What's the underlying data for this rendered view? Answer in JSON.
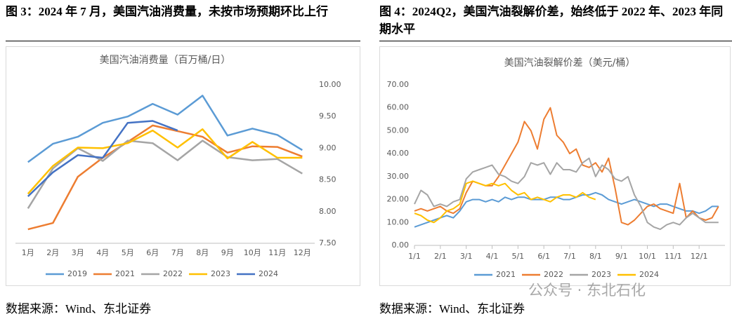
{
  "figures": [
    {
      "caption": "图 3：2024 年 7 月，美国汽油消费量，未按市场预期环比上行",
      "source": "数据来源：Wind、东北证券"
    },
    {
      "caption": "图 4：2024Q2，美国汽油裂解价差，始终低于 2022 年、2023 年同期水平",
      "source": "数据来源：Wind、东北证券"
    }
  ],
  "watermark": "公众号 · 东北石化",
  "chart_data": [
    {
      "type": "line",
      "title": "美国汽油消费量（百万桶/日）",
      "y_axis_side": "right",
      "grid": false,
      "legend": "bottom",
      "categories": [
        "1月",
        "2月",
        "3月",
        "4月",
        "5月",
        "6月",
        "7月",
        "8月",
        "9月",
        "10月",
        "11月",
        "12月"
      ],
      "ylim": [
        7.5,
        10
      ],
      "yticks": [
        {
          "value": 7.5,
          "label": "7.50"
        },
        {
          "value": 8,
          "label": "8.00"
        },
        {
          "value": 8.5,
          "label": "8.50"
        },
        {
          "value": 9,
          "label": "9.00"
        },
        {
          "value": 9.5,
          "label": "9.50"
        },
        {
          "value": 10,
          "label": "10.00"
        }
      ],
      "series": [
        {
          "name": "2019",
          "color": "#5b9bd5",
          "values": [
            8.78,
            9.07,
            9.18,
            9.4,
            9.5,
            9.7,
            9.53,
            9.83,
            9.2,
            9.31,
            9.21,
            8.97
          ]
        },
        {
          "name": "2021",
          "color": "#ed7d31",
          "values": [
            7.72,
            7.82,
            8.55,
            8.85,
            9.1,
            9.36,
            9.27,
            9.18,
            8.93,
            9.03,
            9.02,
            8.87
          ]
        },
        {
          "name": "2022",
          "color": "#a5a5a5",
          "values": [
            8.05,
            8.68,
            9.0,
            8.8,
            9.12,
            9.08,
            8.81,
            9.12,
            8.86,
            8.81,
            8.83,
            8.6
          ]
        },
        {
          "name": "2023",
          "color": "#ffc000",
          "values": [
            8.28,
            8.72,
            9.01,
            9.0,
            9.08,
            9.28,
            9.01,
            9.3,
            8.84,
            9.1,
            8.85,
            8.85
          ]
        },
        {
          "name": "2024",
          "color": "#4472c4",
          "values": [
            8.24,
            8.62,
            8.89,
            8.85,
            9.4,
            9.43,
            9.28,
            null,
            null,
            null,
            null,
            null
          ]
        }
      ]
    },
    {
      "type": "line",
      "title": "美国汽油裂解价差（美元/桶）",
      "y_axis_side": "left",
      "grid": false,
      "legend": "bottom",
      "categories": [
        "1/1",
        null,
        null,
        null,
        "2/1",
        null,
        null,
        null,
        "3/1",
        null,
        null,
        null,
        "4/1",
        null,
        null,
        null,
        "5/1",
        null,
        null,
        null,
        "6/1",
        null,
        null,
        null,
        "7/1",
        null,
        null,
        null,
        "8/1",
        null,
        null,
        null,
        "9/1",
        null,
        null,
        null,
        "10/1",
        null,
        null,
        null,
        "11/1",
        null,
        null,
        null,
        "12/1",
        null,
        null,
        null
      ],
      "ylim": [
        0,
        70
      ],
      "yticks": [
        {
          "value": 0,
          "label": "0.00"
        },
        {
          "value": 10,
          "label": "10.00"
        },
        {
          "value": 20,
          "label": "20.00"
        },
        {
          "value": 30,
          "label": "30.00"
        },
        {
          "value": 40,
          "label": "40.00"
        },
        {
          "value": 50,
          "label": "50.00"
        },
        {
          "value": 60,
          "label": "60.00"
        },
        {
          "value": 70,
          "label": "70.00"
        }
      ],
      "series": [
        {
          "name": "2021",
          "color": "#5b9bd5",
          "values": [
            8,
            9,
            10,
            11,
            12,
            13,
            12,
            15,
            19,
            20,
            20,
            19,
            20,
            19,
            21,
            20,
            21,
            21,
            20,
            20,
            20,
            21,
            21,
            20,
            20,
            21,
            22,
            22,
            23,
            22,
            20,
            19,
            18,
            19,
            20,
            19,
            18,
            17,
            18,
            18,
            17,
            16,
            15,
            15,
            14,
            15,
            17,
            17
          ]
        },
        {
          "name": "2022",
          "color": "#ed7d31",
          "values": [
            15,
            16,
            15,
            16,
            17,
            15,
            14,
            16,
            23,
            28,
            27,
            26,
            26,
            30,
            35,
            40,
            45,
            54,
            50,
            42,
            55,
            60,
            48,
            45,
            40,
            42,
            35,
            34,
            36,
            32,
            38,
            25,
            10,
            9,
            11,
            14,
            17,
            18,
            16,
            15,
            14,
            27,
            12,
            15,
            12,
            11,
            12,
            17
          ]
        },
        {
          "name": "2023",
          "color": "#a5a5a5",
          "values": [
            18,
            24,
            22,
            17,
            18,
            17,
            19,
            20,
            29,
            32,
            33,
            34,
            35,
            31,
            30,
            28,
            27,
            30,
            36,
            35,
            36,
            31,
            36,
            33,
            33,
            32,
            36,
            38,
            30,
            35,
            33,
            29,
            28,
            30,
            22,
            17,
            10,
            8,
            7,
            9,
            10,
            9,
            12,
            14,
            12,
            10,
            10,
            10
          ]
        },
        {
          "name": "2024",
          "color": "#ffc000",
          "values": [
            14,
            13,
            11,
            10,
            12,
            15,
            16,
            18,
            27,
            28,
            27,
            26,
            27,
            26,
            27,
            24,
            22,
            23,
            20,
            21,
            20,
            19,
            21,
            22,
            22,
            21,
            23,
            21,
            20,
            null,
            null,
            null,
            null,
            null,
            null,
            null,
            null,
            null,
            null,
            null,
            null,
            null,
            null,
            null,
            null,
            null,
            null,
            null
          ]
        }
      ]
    }
  ]
}
